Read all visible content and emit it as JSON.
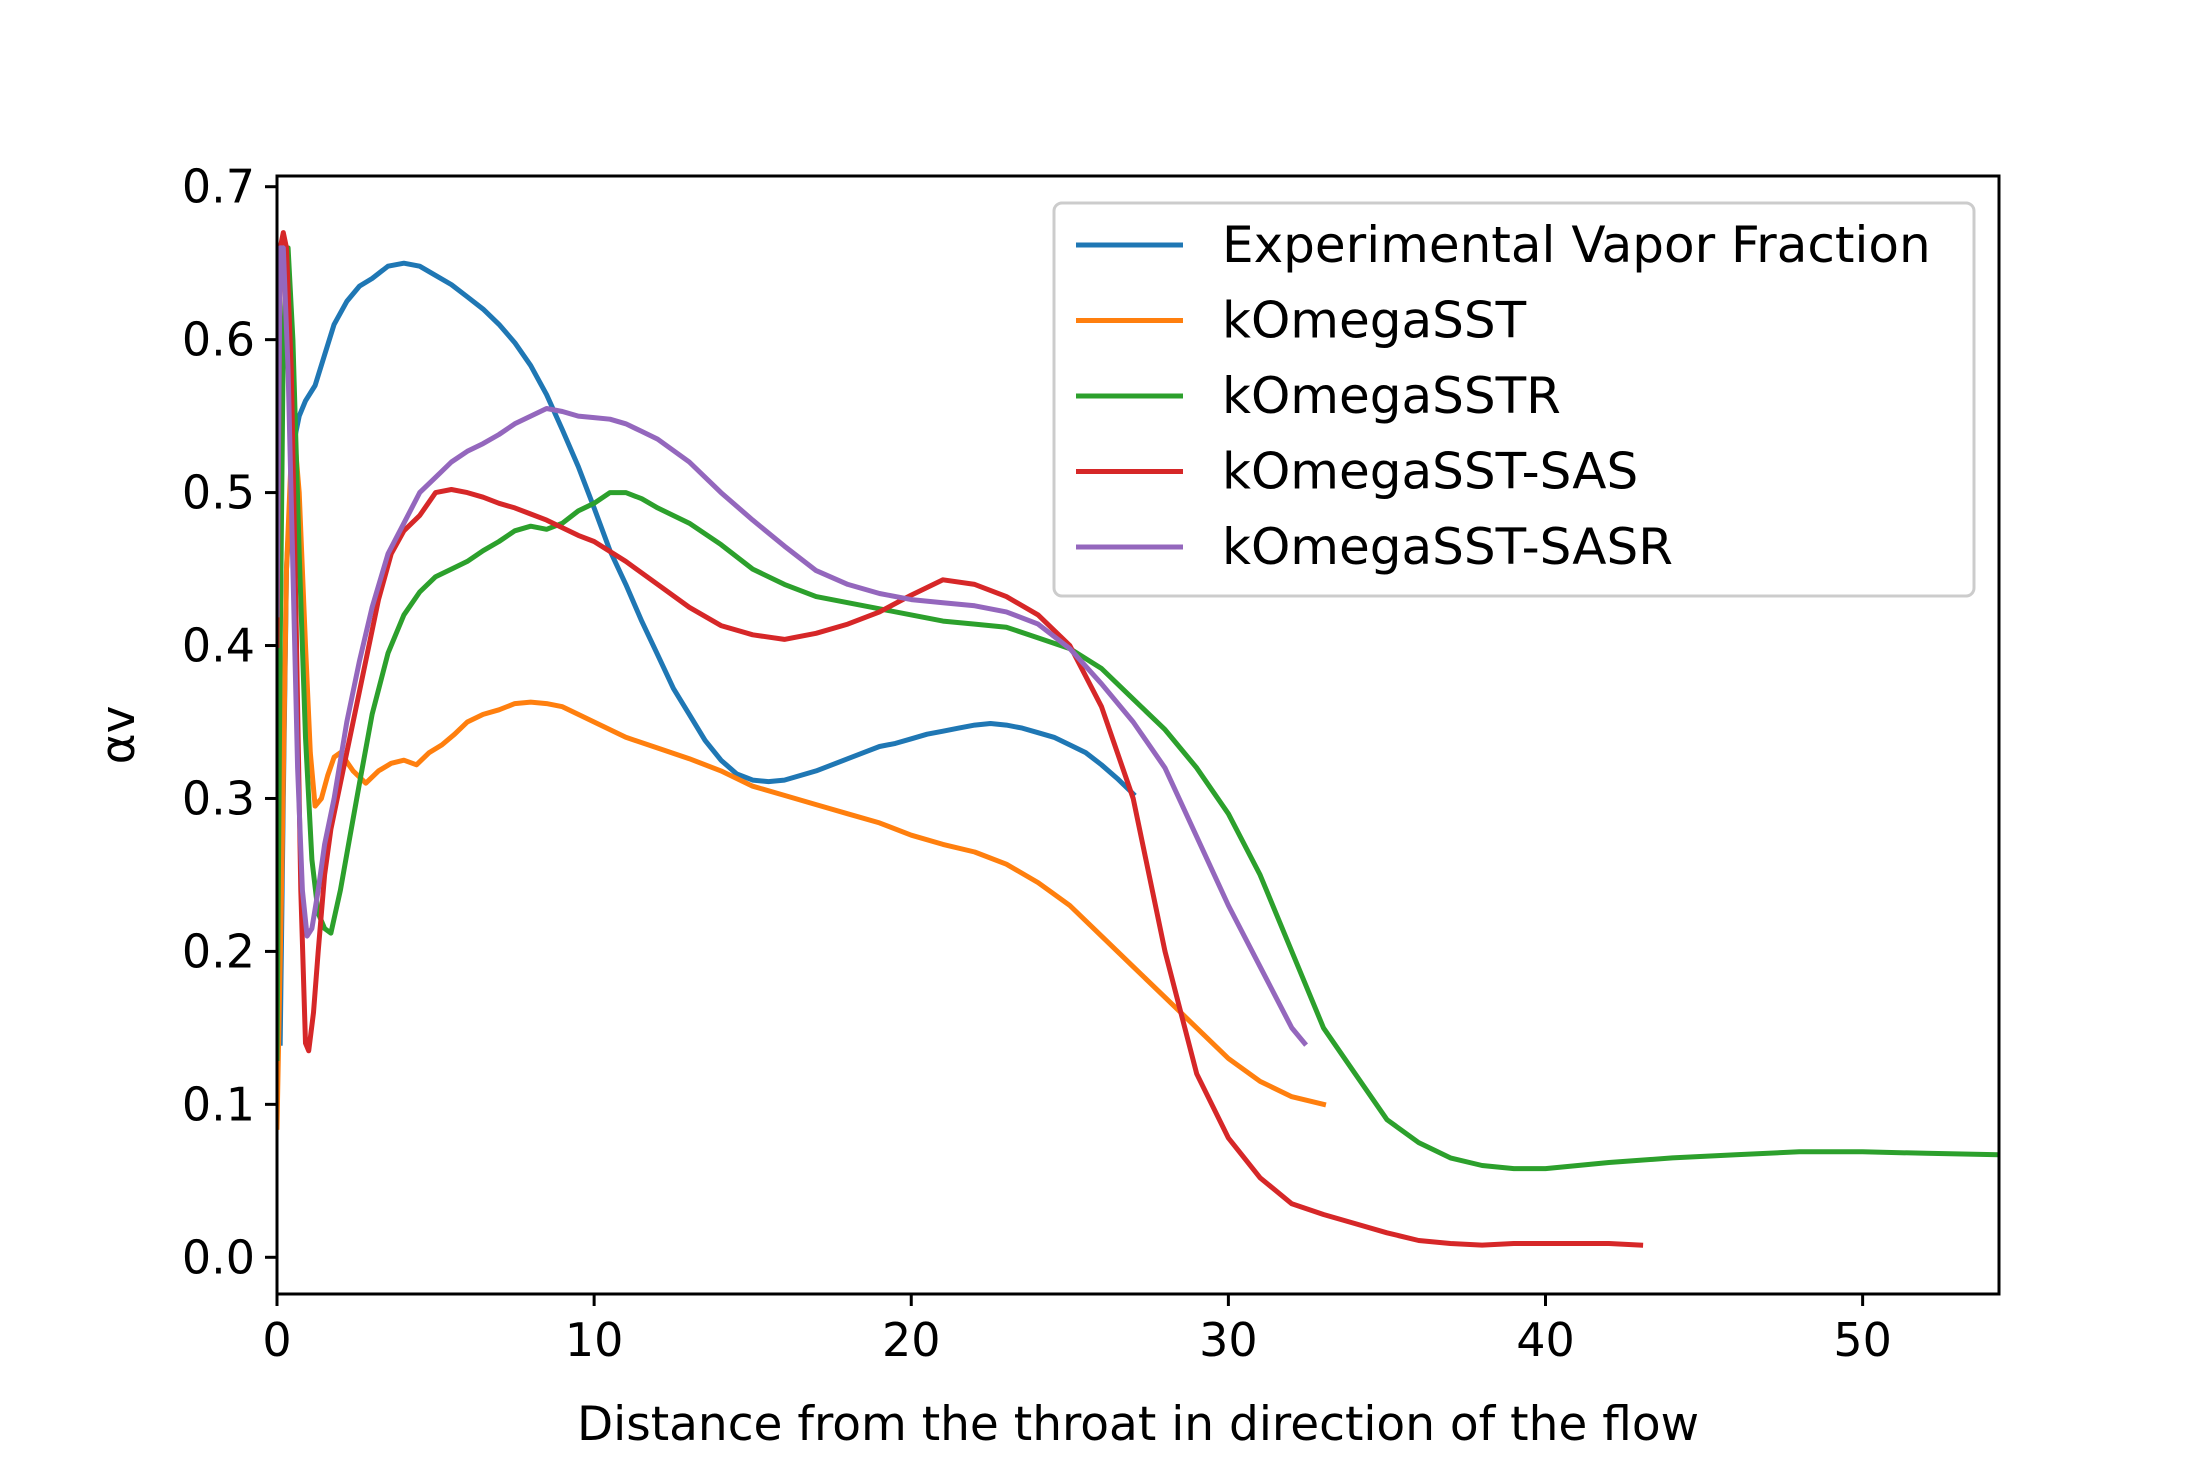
{
  "chart_data": {
    "type": "line",
    "title": "",
    "xlabel": "Distance from the throat in direction of the flow",
    "ylabel": "αv",
    "xlim": [
      0,
      54.3
    ],
    "ylim": [
      -0.024,
      0.707
    ],
    "xticks": [
      0,
      10,
      20,
      30,
      40,
      50
    ],
    "xtick_labels": [
      "0",
      "10",
      "20",
      "30",
      "40",
      "50"
    ],
    "yticks": [
      0.0,
      0.1,
      0.2,
      0.3,
      0.4,
      0.5,
      0.6,
      0.7
    ],
    "ytick_labels": [
      "0.0",
      "0.1",
      "0.2",
      "0.3",
      "0.4",
      "0.5",
      "0.6",
      "0.7"
    ],
    "grid": false,
    "legend_position": "top-right",
    "series": [
      {
        "name": "Experimental Vapor Fraction",
        "color": "#1f77b4",
        "x": [
          0.1,
          0.2,
          0.3,
          0.5,
          0.7,
          0.9,
          1.2,
          1.5,
          1.8,
          2.2,
          2.6,
          3.0,
          3.5,
          4.0,
          4.5,
          5.0,
          5.5,
          6.0,
          6.5,
          7.0,
          7.5,
          8.0,
          8.5,
          9.0,
          9.5,
          10.0,
          10.5,
          11.0,
          11.5,
          12.0,
          12.5,
          13.0,
          13.5,
          14.0,
          14.5,
          15.0,
          15.5,
          16.0,
          16.5,
          17.0,
          17.5,
          18.0,
          18.5,
          19.0,
          19.5,
          20.0,
          20.5,
          21.0,
          21.5,
          22.0,
          22.5,
          23.0,
          23.5,
          24.0,
          24.5,
          25.0,
          25.5,
          26.0,
          26.5,
          27.0
        ],
        "y": [
          0.14,
          0.3,
          0.45,
          0.53,
          0.55,
          0.56,
          0.57,
          0.59,
          0.61,
          0.625,
          0.635,
          0.64,
          0.648,
          0.65,
          0.648,
          0.642,
          0.636,
          0.628,
          0.62,
          0.61,
          0.598,
          0.583,
          0.564,
          0.541,
          0.517,
          0.49,
          0.462,
          0.44,
          0.416,
          0.394,
          0.372,
          0.355,
          0.338,
          0.325,
          0.316,
          0.312,
          0.311,
          0.312,
          0.315,
          0.318,
          0.322,
          0.326,
          0.33,
          0.334,
          0.336,
          0.339,
          0.342,
          0.344,
          0.346,
          0.348,
          0.349,
          0.348,
          0.346,
          0.343,
          0.34,
          0.335,
          0.33,
          0.322,
          0.313,
          0.303
        ]
      },
      {
        "name": "kOmegaSST",
        "color": "#ff7f0e",
        "x": [
          0.0,
          0.15,
          0.3,
          0.5,
          0.7,
          0.9,
          1.05,
          1.2,
          1.4,
          1.6,
          1.8,
          2.0,
          2.4,
          2.8,
          3.2,
          3.6,
          4.0,
          4.4,
          4.8,
          5.2,
          5.6,
          6.0,
          6.5,
          7.0,
          7.5,
          8.0,
          8.5,
          9.0,
          9.5,
          10.0,
          11.0,
          12.0,
          13.0,
          14.0,
          15.0,
          16.0,
          17.0,
          18.0,
          19.0,
          20.0,
          21.0,
          22.0,
          23.0,
          24.0,
          25.0,
          26.0,
          27.0,
          28.0,
          29.0,
          30.0,
          31.0,
          32.0,
          33.0
        ],
        "y": [
          0.085,
          0.25,
          0.45,
          0.55,
          0.5,
          0.4,
          0.33,
          0.295,
          0.3,
          0.315,
          0.327,
          0.33,
          0.318,
          0.31,
          0.318,
          0.323,
          0.325,
          0.322,
          0.33,
          0.335,
          0.342,
          0.35,
          0.355,
          0.358,
          0.362,
          0.363,
          0.362,
          0.36,
          0.355,
          0.35,
          0.34,
          0.333,
          0.326,
          0.318,
          0.308,
          0.302,
          0.296,
          0.29,
          0.284,
          0.276,
          0.27,
          0.265,
          0.257,
          0.245,
          0.23,
          0.21,
          0.19,
          0.17,
          0.15,
          0.13,
          0.115,
          0.105,
          0.1
        ]
      },
      {
        "name": "kOmegaSSTR",
        "color": "#2ca02c",
        "x": [
          0.0,
          0.1,
          0.2,
          0.35,
          0.5,
          0.7,
          0.9,
          1.1,
          1.3,
          1.5,
          1.7,
          2.0,
          2.3,
          2.6,
          3.0,
          3.5,
          4.0,
          4.5,
          5.0,
          5.5,
          6.0,
          6.5,
          7.0,
          7.5,
          8.0,
          8.5,
          9.0,
          9.5,
          10.0,
          10.5,
          11.0,
          11.5,
          12.0,
          13.0,
          14.0,
          15.0,
          16.0,
          17.0,
          18.0,
          19.0,
          20.0,
          21.0,
          22.0,
          23.0,
          24.0,
          25.0,
          26.0,
          27.0,
          28.0,
          29.0,
          30.0,
          31.0,
          32.0,
          33.0,
          34.0,
          35.0,
          36.0,
          37.0,
          38.0,
          39.0,
          40.0,
          42.0,
          44.0,
          46.0,
          48.0,
          50.0,
          52.0,
          54.3
        ],
        "y": [
          0.13,
          0.4,
          0.6,
          0.66,
          0.6,
          0.46,
          0.34,
          0.26,
          0.225,
          0.215,
          0.212,
          0.24,
          0.275,
          0.31,
          0.355,
          0.395,
          0.42,
          0.435,
          0.445,
          0.45,
          0.455,
          0.462,
          0.468,
          0.475,
          0.478,
          0.476,
          0.48,
          0.488,
          0.493,
          0.5,
          0.5,
          0.496,
          0.49,
          0.48,
          0.466,
          0.45,
          0.44,
          0.432,
          0.428,
          0.424,
          0.42,
          0.416,
          0.414,
          0.412,
          0.405,
          0.398,
          0.385,
          0.365,
          0.345,
          0.32,
          0.29,
          0.25,
          0.2,
          0.15,
          0.12,
          0.09,
          0.075,
          0.065,
          0.06,
          0.058,
          0.058,
          0.062,
          0.065,
          0.067,
          0.069,
          0.069,
          0.068,
          0.067
        ]
      },
      {
        "name": "kOmegaSST-SAS",
        "color": "#d62728",
        "x": [
          0.0,
          0.1,
          0.2,
          0.3,
          0.45,
          0.6,
          0.75,
          0.9,
          1.0,
          1.15,
          1.3,
          1.5,
          1.7,
          2.0,
          2.4,
          2.8,
          3.2,
          3.6,
          4.0,
          4.5,
          5.0,
          5.5,
          6.0,
          6.5,
          7.0,
          7.5,
          8.0,
          8.5,
          9.0,
          9.5,
          10.0,
          11.0,
          12.0,
          13.0,
          14.0,
          15.0,
          16.0,
          17.0,
          18.0,
          19.0,
          20.0,
          21.0,
          22.0,
          23.0,
          24.0,
          25.0,
          26.0,
          27.0,
          28.0,
          29.0,
          30.0,
          31.0,
          32.0,
          33.0,
          34.0,
          35.0,
          36.0,
          37.0,
          38.0,
          39.0,
          40.0,
          41.0,
          42.0,
          43.0
        ],
        "y": [
          0.4,
          0.66,
          0.67,
          0.66,
          0.58,
          0.42,
          0.24,
          0.14,
          0.135,
          0.16,
          0.2,
          0.25,
          0.28,
          0.31,
          0.35,
          0.39,
          0.43,
          0.46,
          0.475,
          0.485,
          0.5,
          0.502,
          0.5,
          0.497,
          0.493,
          0.49,
          0.486,
          0.482,
          0.477,
          0.472,
          0.468,
          0.455,
          0.44,
          0.425,
          0.413,
          0.407,
          0.404,
          0.408,
          0.414,
          0.422,
          0.433,
          0.443,
          0.44,
          0.432,
          0.42,
          0.4,
          0.36,
          0.3,
          0.2,
          0.12,
          0.078,
          0.052,
          0.035,
          0.028,
          0.022,
          0.016,
          0.011,
          0.009,
          0.008,
          0.009,
          0.009,
          0.009,
          0.009,
          0.008
        ]
      },
      {
        "name": "kOmegaSST-SASR",
        "color": "#9467bd",
        "x": [
          0.0,
          0.1,
          0.2,
          0.35,
          0.5,
          0.65,
          0.8,
          0.95,
          1.1,
          1.3,
          1.5,
          1.8,
          2.2,
          2.6,
          3.0,
          3.5,
          4.0,
          4.5,
          5.0,
          5.5,
          6.0,
          6.5,
          7.0,
          7.5,
          8.0,
          8.5,
          9.0,
          9.5,
          10.0,
          10.5,
          11.0,
          11.5,
          12.0,
          13.0,
          14.0,
          15.0,
          16.0,
          17.0,
          18.0,
          19.0,
          20.0,
          21.0,
          22.0,
          23.0,
          24.0,
          25.0,
          26.0,
          27.0,
          28.0,
          29.0,
          30.0,
          31.0,
          32.0,
          32.4
        ],
        "y": [
          0.42,
          0.66,
          0.66,
          0.58,
          0.45,
          0.32,
          0.24,
          0.21,
          0.215,
          0.24,
          0.27,
          0.3,
          0.35,
          0.39,
          0.425,
          0.46,
          0.48,
          0.5,
          0.51,
          0.52,
          0.527,
          0.532,
          0.538,
          0.545,
          0.55,
          0.555,
          0.553,
          0.55,
          0.549,
          0.548,
          0.545,
          0.54,
          0.535,
          0.52,
          0.5,
          0.482,
          0.465,
          0.449,
          0.44,
          0.434,
          0.43,
          0.428,
          0.426,
          0.422,
          0.414,
          0.398,
          0.375,
          0.35,
          0.32,
          0.275,
          0.23,
          0.19,
          0.15,
          0.14
        ]
      }
    ]
  }
}
